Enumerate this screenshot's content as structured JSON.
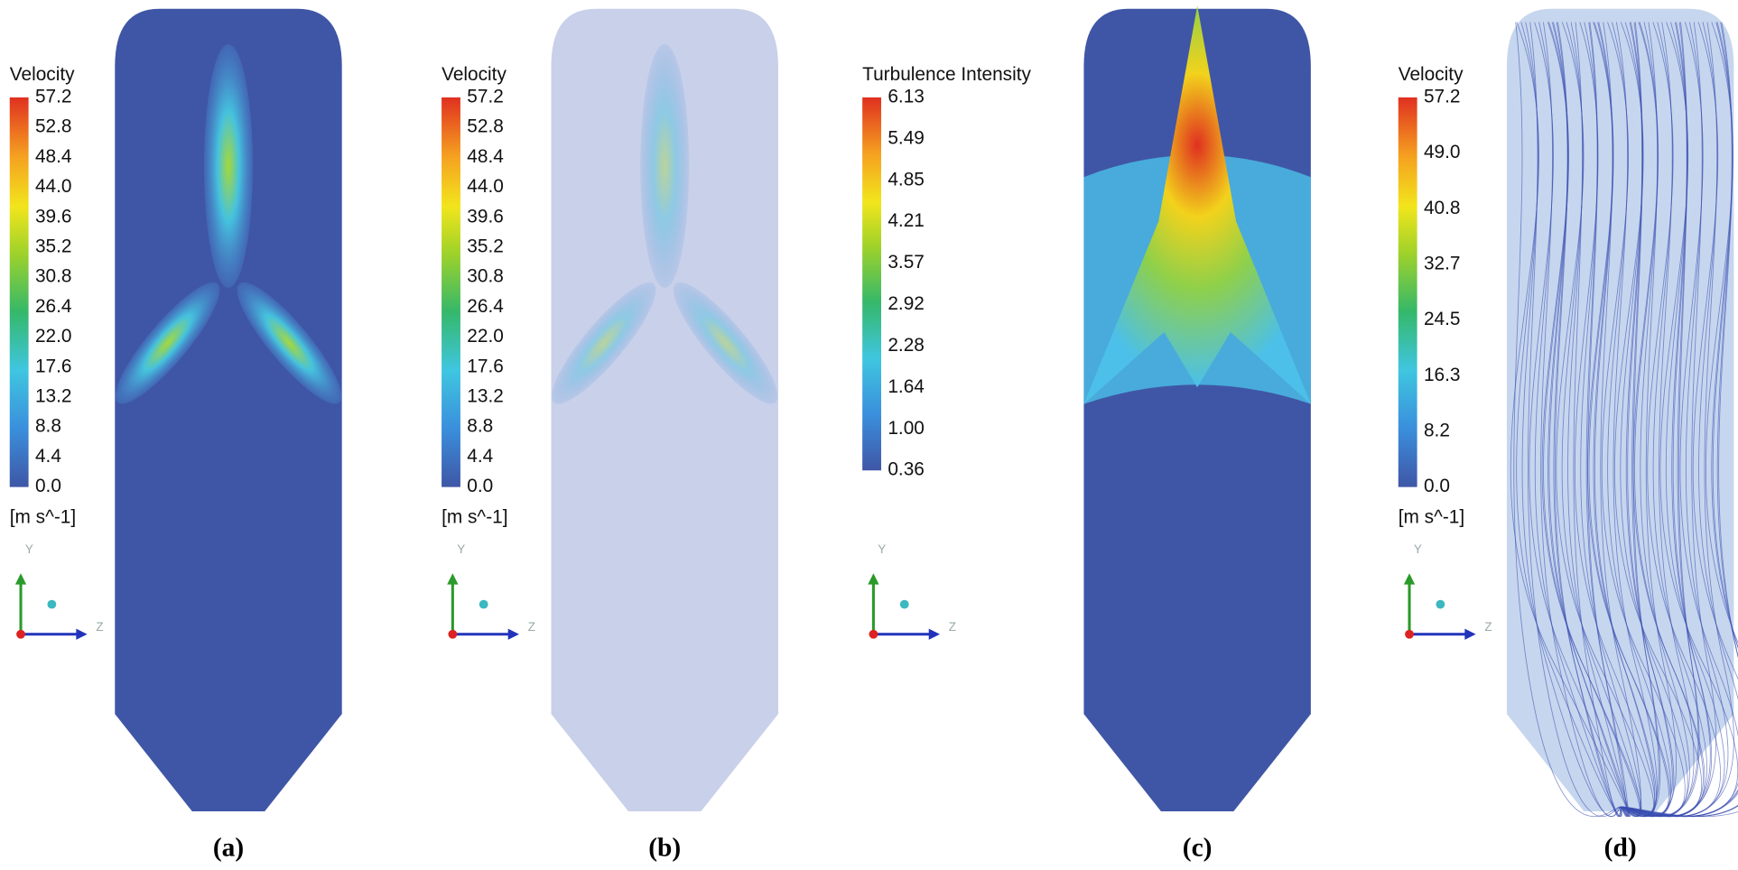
{
  "panels": [
    {
      "caption": "(a)",
      "legend": {
        "title": "Velocity",
        "ticks": [
          "57.2",
          "52.8",
          "48.4",
          "44.0",
          "39.6",
          "35.2",
          "30.8",
          "26.4",
          "22.0",
          "17.6",
          "13.2",
          "8.8",
          "4.4",
          "0.0"
        ],
        "unit": "[m s^-1]"
      },
      "axes": {
        "y": "Y",
        "z": "Z"
      }
    },
    {
      "caption": "(b)",
      "legend": {
        "title": "Velocity",
        "ticks": [
          "57.2",
          "52.8",
          "48.4",
          "44.0",
          "39.6",
          "35.2",
          "30.8",
          "26.4",
          "22.0",
          "17.6",
          "13.2",
          "8.8",
          "4.4",
          "0.0"
        ],
        "unit": "[m s^-1]"
      },
      "axes": {
        "y": "Y",
        "z": "Z"
      }
    },
    {
      "caption": "(c)",
      "legend": {
        "title": "Turbulence Intensity",
        "ticks": [
          "6.13",
          "5.49",
          "4.85",
          "4.21",
          "3.57",
          "2.92",
          "2.28",
          "1.64",
          "1.00",
          "0.36"
        ]
      },
      "axes": {
        "y": "Y",
        "z": "Z"
      }
    },
    {
      "caption": "(d)",
      "legend": {
        "title": "Velocity",
        "ticks": [
          "57.2",
          "49.0",
          "40.8",
          "32.7",
          "24.5",
          "16.3",
          "8.2",
          "0.0"
        ],
        "unit": "[m s^-1]"
      },
      "axes": {
        "y": "Y",
        "z": "Z"
      }
    }
  ]
}
